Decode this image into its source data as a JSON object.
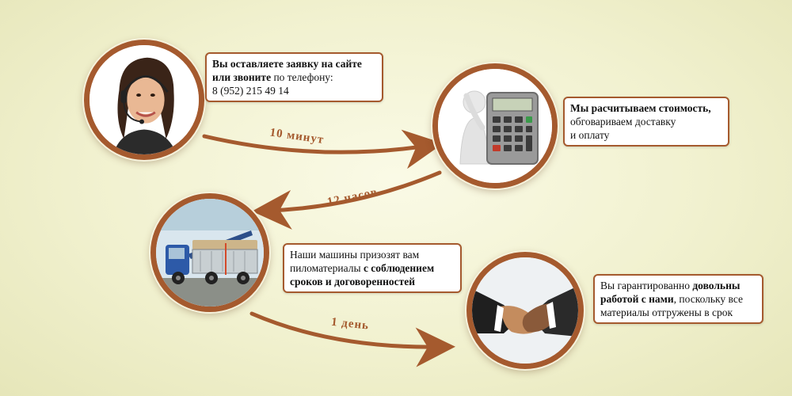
{
  "colors": {
    "accent": "#a55a2e",
    "background": "#f1f1cf"
  },
  "steps": [
    {
      "image": "operator-headset-woman",
      "lines": [
        [
          {
            "text": "Вы оставляете заявку на сайте",
            "bold": true
          }
        ],
        [
          {
            "text": "или звоните",
            "bold": true
          },
          {
            "text": " по телефону:",
            "bold": false
          }
        ],
        [
          {
            "text": "8 (952) 215 49 14",
            "bold": false
          }
        ]
      ]
    },
    {
      "image": "person-with-calculator",
      "lines": [
        [
          {
            "text": "Мы расчитываем стоимость,",
            "bold": true
          }
        ],
        [
          {
            "text": "обговариваем доставку",
            "bold": false
          }
        ],
        [
          {
            "text": "и оплату",
            "bold": false
          }
        ]
      ]
    },
    {
      "image": "truck-with-lumber",
      "lines": [
        [
          {
            "text": "Наши машины призозят вам",
            "bold": false
          }
        ],
        [
          {
            "text": "пиломатериалы ",
            "bold": false
          },
          {
            "text": "с соблюдением",
            "bold": true
          }
        ],
        [
          {
            "text": "сроков и договоренностей",
            "bold": true
          }
        ]
      ]
    },
    {
      "image": "handshake",
      "lines": [
        [
          {
            "text": "Вы гарантированно ",
            "bold": false
          },
          {
            "text": "довольны",
            "bold": true
          }
        ],
        [
          {
            "text": "работой с нами",
            "bold": true
          },
          {
            "text": ", поскольку все",
            "bold": false
          }
        ],
        [
          {
            "text": "материалы отгружены в срок",
            "bold": false
          }
        ]
      ]
    }
  ],
  "arrows": [
    {
      "label": "10 минут"
    },
    {
      "label": "12 часов"
    },
    {
      "label": "1 день"
    }
  ]
}
